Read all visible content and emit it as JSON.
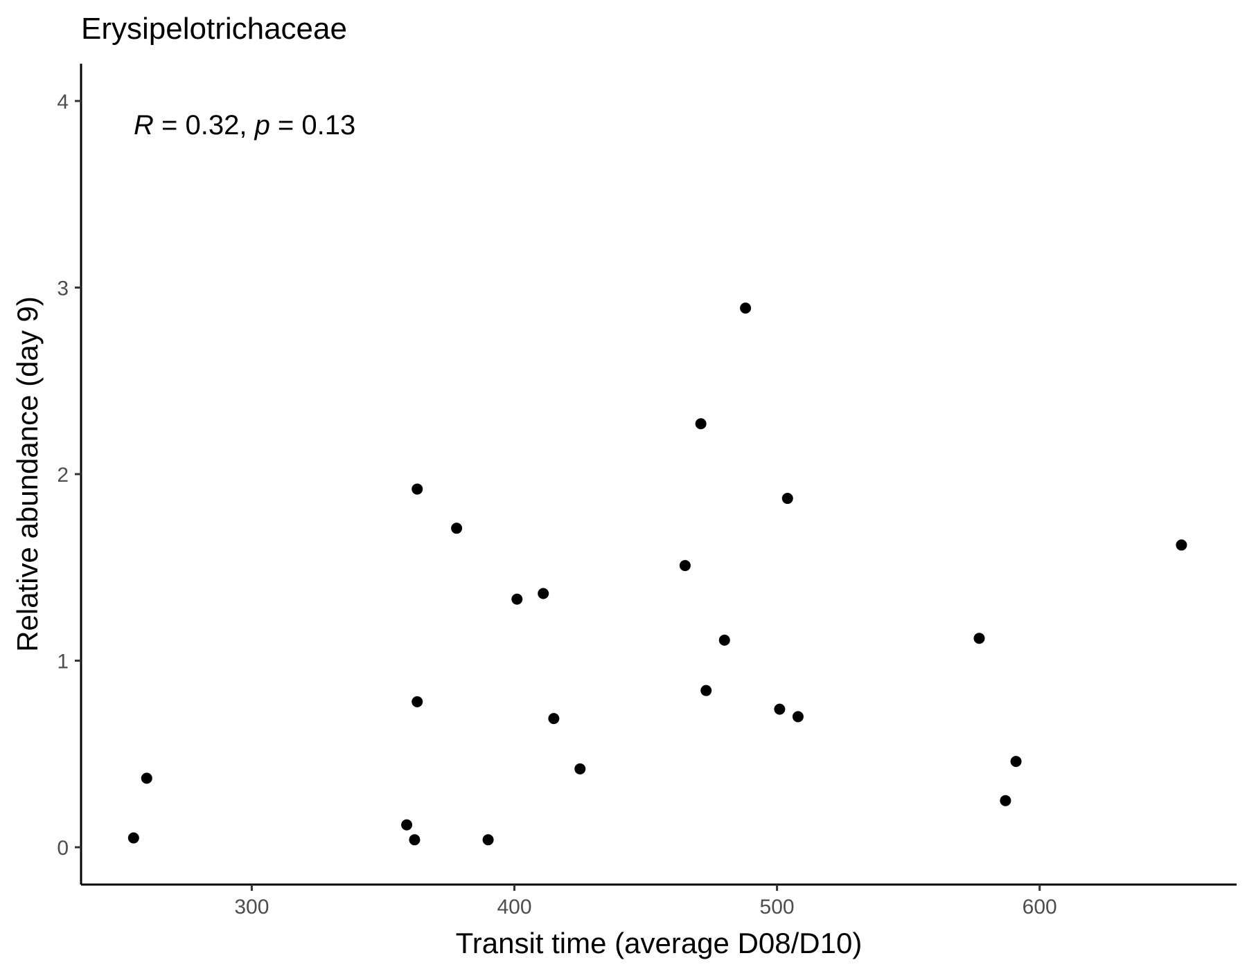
{
  "chart_data": {
    "type": "scatter",
    "title": "Erysipelotrichaceae",
    "xlabel": "Transit time (average D08/D10)",
    "ylabel": "Relative abundance (day 9)",
    "xlim": [
      235,
      675
    ],
    "ylim": [
      -0.2,
      4.2
    ],
    "x_ticks": [
      300,
      400,
      500,
      600
    ],
    "x_tick_labels": [
      "300",
      "400",
      "500",
      "600"
    ],
    "y_ticks": [
      0,
      1,
      2,
      3,
      4
    ],
    "y_tick_labels": [
      "0",
      "1",
      "2",
      "3",
      "4"
    ],
    "grid": false,
    "point_color": "#000000",
    "annotation": {
      "r_label": "R",
      "r_text": " = 0.32, ",
      "p_label": "p",
      "p_text": " = 0.13"
    },
    "points": [
      {
        "x": 255,
        "y": 0.05
      },
      {
        "x": 260,
        "y": 0.37
      },
      {
        "x": 359,
        "y": 0.12
      },
      {
        "x": 362,
        "y": 0.04
      },
      {
        "x": 363,
        "y": 1.92
      },
      {
        "x": 363,
        "y": 0.78
      },
      {
        "x": 378,
        "y": 1.71
      },
      {
        "x": 390,
        "y": 0.04
      },
      {
        "x": 401,
        "y": 1.33
      },
      {
        "x": 411,
        "y": 1.36
      },
      {
        "x": 415,
        "y": 0.69
      },
      {
        "x": 425,
        "y": 0.42
      },
      {
        "x": 465,
        "y": 1.51
      },
      {
        "x": 471,
        "y": 2.27
      },
      {
        "x": 473,
        "y": 0.84
      },
      {
        "x": 480,
        "y": 1.11
      },
      {
        "x": 488,
        "y": 2.89
      },
      {
        "x": 501,
        "y": 0.74
      },
      {
        "x": 504,
        "y": 1.87
      },
      {
        "x": 508,
        "y": 0.7
      },
      {
        "x": 577,
        "y": 1.12
      },
      {
        "x": 587,
        "y": 0.25
      },
      {
        "x": 591,
        "y": 0.46
      },
      {
        "x": 654,
        "y": 1.62
      }
    ]
  }
}
